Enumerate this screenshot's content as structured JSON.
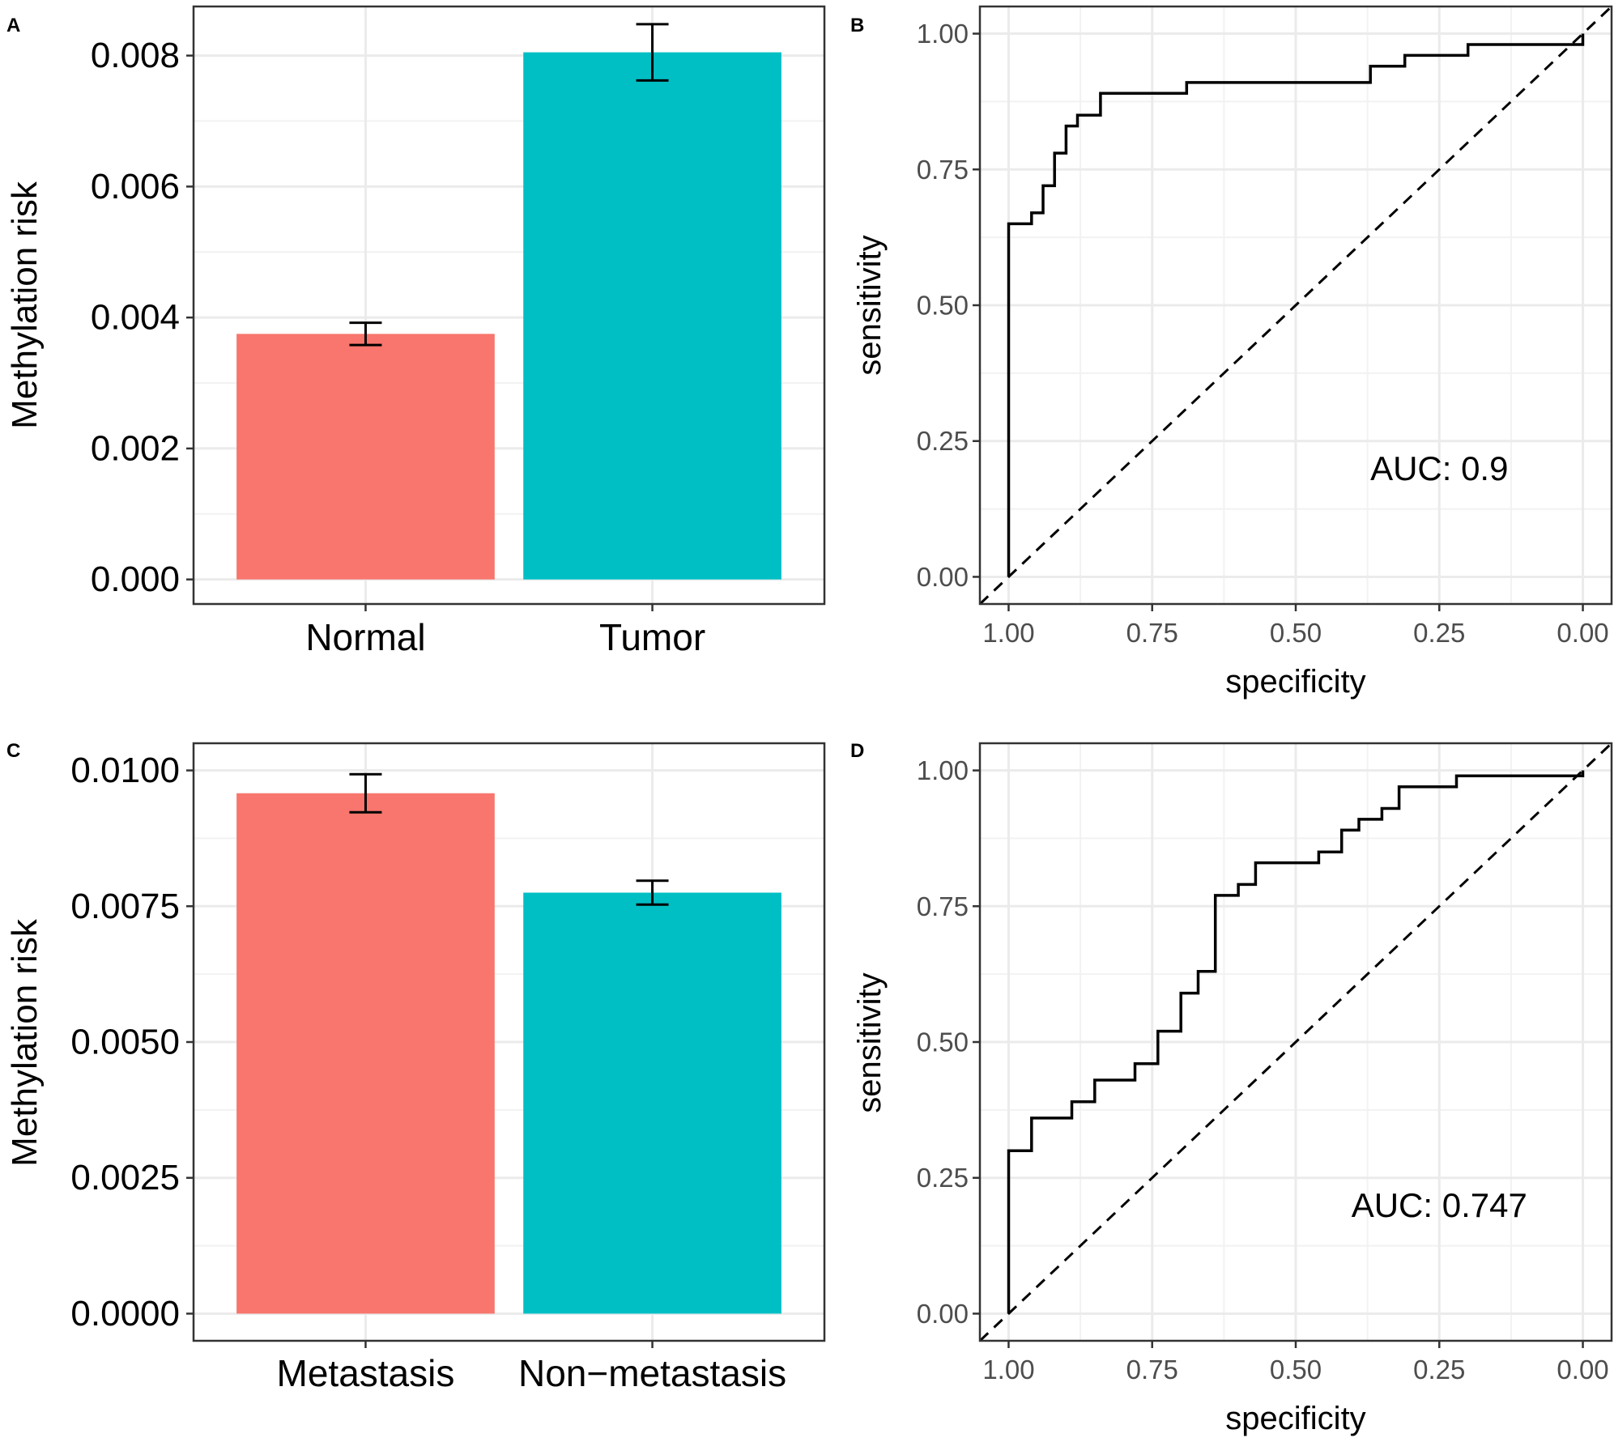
{
  "chart_data": [
    {
      "panel": "A",
      "type": "bar",
      "categories": [
        "Normal",
        "Tumor"
      ],
      "values": [
        0.00375,
        0.00805
      ],
      "error": [
        0.00017,
        0.00043
      ],
      "colors": [
        "#F8766D",
        "#00BFC4"
      ],
      "ylabel": "Methylation risk",
      "xlabel": "",
      "ylim": [
        -0.000375,
        0.00875
      ],
      "yticks": [
        0.0,
        0.002,
        0.004,
        0.006,
        0.008
      ],
      "ytick_labels": [
        "0.000",
        "0.002",
        "0.004",
        "0.006",
        "0.008"
      ]
    },
    {
      "panel": "B",
      "type": "line",
      "xlabel": "specificity",
      "ylabel": "sensitivity",
      "xlim": [
        1.05,
        -0.05
      ],
      "ylim": [
        -0.05,
        1.05
      ],
      "xticks": [
        1.0,
        0.75,
        0.5,
        0.25,
        0.0
      ],
      "xtick_labels": [
        "1.00",
        "0.75",
        "0.50",
        "0.25",
        "0.00"
      ],
      "yticks": [
        0.0,
        0.25,
        0.5,
        0.75,
        1.0
      ],
      "ytick_labels": [
        "0.00",
        "0.25",
        "0.50",
        "0.75",
        "1.00"
      ],
      "annotation": "AUC: 0.9",
      "series": [
        {
          "name": "ROC",
          "x": [
            1.0,
            1.0,
            0.96,
            0.96,
            0.94,
            0.94,
            0.92,
            0.92,
            0.9,
            0.9,
            0.88,
            0.88,
            0.84,
            0.84,
            0.69,
            0.69,
            0.37,
            0.37,
            0.31,
            0.31,
            0.2,
            0.2,
            0.0,
            0.0
          ],
          "y": [
            0.0,
            0.65,
            0.65,
            0.67,
            0.67,
            0.72,
            0.72,
            0.78,
            0.78,
            0.83,
            0.83,
            0.85,
            0.85,
            0.89,
            0.89,
            0.91,
            0.91,
            0.94,
            0.94,
            0.96,
            0.96,
            0.98,
            0.98,
            1.0
          ]
        },
        {
          "name": "diagonal",
          "x": [
            1.05,
            -0.05
          ],
          "y": [
            -0.05,
            1.05
          ],
          "dashed": true
        }
      ]
    },
    {
      "panel": "C",
      "type": "bar",
      "categories": [
        "Metastasis",
        "Non−metastasis"
      ],
      "values": [
        0.00958,
        0.00775
      ],
      "error": [
        0.00035,
        0.00022
      ],
      "colors": [
        "#F8766D",
        "#00BFC4"
      ],
      "ylabel": "Methylation risk",
      "xlabel": "",
      "ylim": [
        -0.0005,
        0.0105
      ],
      "yticks": [
        0.0,
        0.0025,
        0.005,
        0.0075,
        0.01
      ],
      "ytick_labels": [
        "0.0000",
        "0.0025",
        "0.0050",
        "0.0075",
        "0.0100"
      ]
    },
    {
      "panel": "D",
      "type": "line",
      "xlabel": "specificity",
      "ylabel": "sensitivity",
      "xlim": [
        1.05,
        -0.05
      ],
      "ylim": [
        -0.05,
        1.05
      ],
      "xticks": [
        1.0,
        0.75,
        0.5,
        0.25,
        0.0
      ],
      "xtick_labels": [
        "1.00",
        "0.75",
        "0.50",
        "0.25",
        "0.00"
      ],
      "yticks": [
        0.0,
        0.25,
        0.5,
        0.75,
        1.0
      ],
      "ytick_labels": [
        "0.00",
        "0.25",
        "0.50",
        "0.75",
        "1.00"
      ],
      "annotation": "AUC: 0.747",
      "series": [
        {
          "name": "ROC",
          "x": [
            1.0,
            1.0,
            0.96,
            0.96,
            0.89,
            0.89,
            0.85,
            0.85,
            0.78,
            0.78,
            0.74,
            0.74,
            0.7,
            0.7,
            0.67,
            0.67,
            0.64,
            0.64,
            0.6,
            0.6,
            0.57,
            0.57,
            0.46,
            0.46,
            0.42,
            0.42,
            0.39,
            0.39,
            0.35,
            0.35,
            0.32,
            0.32,
            0.22,
            0.22,
            0.0,
            0.0
          ],
          "y": [
            0.0,
            0.3,
            0.3,
            0.36,
            0.36,
            0.39,
            0.39,
            0.43,
            0.43,
            0.46,
            0.46,
            0.52,
            0.52,
            0.59,
            0.59,
            0.63,
            0.63,
            0.77,
            0.77,
            0.79,
            0.79,
            0.83,
            0.83,
            0.85,
            0.85,
            0.89,
            0.89,
            0.91,
            0.91,
            0.93,
            0.93,
            0.97,
            0.97,
            0.99,
            0.99,
            1.0
          ]
        },
        {
          "name": "diagonal",
          "x": [
            1.05,
            -0.05
          ],
          "y": [
            -0.05,
            1.05
          ],
          "dashed": true
        }
      ]
    }
  ]
}
